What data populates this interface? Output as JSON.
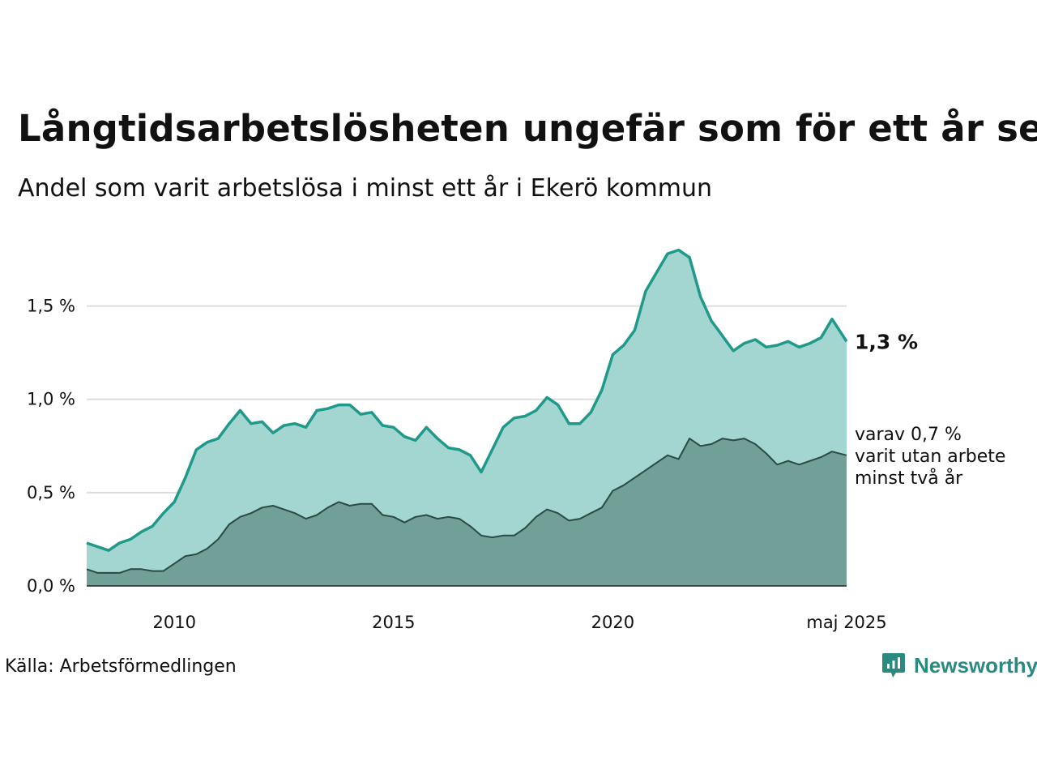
{
  "title": "Långtidsarbetslösheten ungefär som för ett år sen",
  "subtitle": "Andel som varit arbetslösa i minst ett år i Ekerö kommun",
  "source": "Källa: Arbetsförmedlingen",
  "brand": {
    "name": "Newsworthy",
    "icon": "newsworthy-logo-icon",
    "color": "#2a8a80"
  },
  "chart_data": {
    "type": "area",
    "x_start": "2008-01",
    "x_end": "2025-05",
    "xlim": [
      "2008-01",
      "2025-05"
    ],
    "ylim": [
      0,
      1.85
    ],
    "x_tick_labels": [
      {
        "x": "2010-01",
        "label": "2010"
      },
      {
        "x": "2015-01",
        "label": "2015"
      },
      {
        "x": "2020-01",
        "label": "2020"
      },
      {
        "x": "2025-05",
        "label": "maj 2025"
      }
    ],
    "y_ticks": [
      0,
      0.5,
      1.0,
      1.5
    ],
    "y_tick_labels": [
      "0,0 %",
      "0,5 %",
      "1,0 %",
      "1,5 %"
    ],
    "grid": true,
    "series": [
      {
        "id": "total",
        "color": "#1f9a8a",
        "fill": "#a3d6d0",
        "points": [
          [
            "2008-01",
            0.23
          ],
          [
            "2008-04",
            0.21
          ],
          [
            "2008-07",
            0.19
          ],
          [
            "2008-10",
            0.23
          ],
          [
            "2009-01",
            0.25
          ],
          [
            "2009-04",
            0.29
          ],
          [
            "2009-07",
            0.32
          ],
          [
            "2009-10",
            0.39
          ],
          [
            "2010-01",
            0.45
          ],
          [
            "2010-04",
            0.58
          ],
          [
            "2010-07",
            0.73
          ],
          [
            "2010-10",
            0.77
          ],
          [
            "2011-01",
            0.79
          ],
          [
            "2011-04",
            0.87
          ],
          [
            "2011-07",
            0.94
          ],
          [
            "2011-10",
            0.87
          ],
          [
            "2012-01",
            0.88
          ],
          [
            "2012-04",
            0.82
          ],
          [
            "2012-07",
            0.86
          ],
          [
            "2012-10",
            0.87
          ],
          [
            "2013-01",
            0.85
          ],
          [
            "2013-04",
            0.94
          ],
          [
            "2013-07",
            0.95
          ],
          [
            "2013-10",
            0.97
          ],
          [
            "2014-01",
            0.97
          ],
          [
            "2014-04",
            0.92
          ],
          [
            "2014-07",
            0.93
          ],
          [
            "2014-10",
            0.86
          ],
          [
            "2015-01",
            0.85
          ],
          [
            "2015-04",
            0.8
          ],
          [
            "2015-07",
            0.78
          ],
          [
            "2015-10",
            0.85
          ],
          [
            "2016-01",
            0.79
          ],
          [
            "2016-04",
            0.74
          ],
          [
            "2016-07",
            0.73
          ],
          [
            "2016-10",
            0.7
          ],
          [
            "2017-01",
            0.61
          ],
          [
            "2017-04",
            0.73
          ],
          [
            "2017-07",
            0.85
          ],
          [
            "2017-10",
            0.9
          ],
          [
            "2018-01",
            0.91
          ],
          [
            "2018-04",
            0.94
          ],
          [
            "2018-07",
            1.01
          ],
          [
            "2018-10",
            0.97
          ],
          [
            "2019-01",
            0.87
          ],
          [
            "2019-04",
            0.87
          ],
          [
            "2019-07",
            0.93
          ],
          [
            "2019-10",
            1.05
          ],
          [
            "2020-01",
            1.24
          ],
          [
            "2020-04",
            1.29
          ],
          [
            "2020-07",
            1.37
          ],
          [
            "2020-10",
            1.58
          ],
          [
            "2021-01",
            1.68
          ],
          [
            "2021-04",
            1.78
          ],
          [
            "2021-07",
            1.8
          ],
          [
            "2021-10",
            1.76
          ],
          [
            "2022-01",
            1.55
          ],
          [
            "2022-04",
            1.42
          ],
          [
            "2022-07",
            1.34
          ],
          [
            "2022-10",
            1.26
          ],
          [
            "2023-01",
            1.3
          ],
          [
            "2023-04",
            1.32
          ],
          [
            "2023-07",
            1.28
          ],
          [
            "2023-10",
            1.29
          ],
          [
            "2024-01",
            1.31
          ],
          [
            "2024-04",
            1.28
          ],
          [
            "2024-07",
            1.3
          ],
          [
            "2024-10",
            1.33
          ],
          [
            "2025-01",
            1.43
          ],
          [
            "2025-05",
            1.31
          ]
        ]
      },
      {
        "id": "two_years",
        "color": "#2b4a44",
        "fill": "#70a098",
        "points": [
          [
            "2008-01",
            0.09
          ],
          [
            "2008-04",
            0.07
          ],
          [
            "2008-07",
            0.07
          ],
          [
            "2008-10",
            0.07
          ],
          [
            "2009-01",
            0.09
          ],
          [
            "2009-04",
            0.09
          ],
          [
            "2009-07",
            0.08
          ],
          [
            "2009-10",
            0.08
          ],
          [
            "2010-01",
            0.12
          ],
          [
            "2010-04",
            0.16
          ],
          [
            "2010-07",
            0.17
          ],
          [
            "2010-10",
            0.2
          ],
          [
            "2011-01",
            0.25
          ],
          [
            "2011-04",
            0.33
          ],
          [
            "2011-07",
            0.37
          ],
          [
            "2011-10",
            0.39
          ],
          [
            "2012-01",
            0.42
          ],
          [
            "2012-04",
            0.43
          ],
          [
            "2012-07",
            0.41
          ],
          [
            "2012-10",
            0.39
          ],
          [
            "2013-01",
            0.36
          ],
          [
            "2013-04",
            0.38
          ],
          [
            "2013-07",
            0.42
          ],
          [
            "2013-10",
            0.45
          ],
          [
            "2014-01",
            0.43
          ],
          [
            "2014-04",
            0.44
          ],
          [
            "2014-07",
            0.44
          ],
          [
            "2014-10",
            0.38
          ],
          [
            "2015-01",
            0.37
          ],
          [
            "2015-04",
            0.34
          ],
          [
            "2015-07",
            0.37
          ],
          [
            "2015-10",
            0.38
          ],
          [
            "2016-01",
            0.36
          ],
          [
            "2016-04",
            0.37
          ],
          [
            "2016-07",
            0.36
          ],
          [
            "2016-10",
            0.32
          ],
          [
            "2017-01",
            0.27
          ],
          [
            "2017-04",
            0.26
          ],
          [
            "2017-07",
            0.27
          ],
          [
            "2017-10",
            0.27
          ],
          [
            "2018-01",
            0.31
          ],
          [
            "2018-04",
            0.37
          ],
          [
            "2018-07",
            0.41
          ],
          [
            "2018-10",
            0.39
          ],
          [
            "2019-01",
            0.35
          ],
          [
            "2019-04",
            0.36
          ],
          [
            "2019-07",
            0.39
          ],
          [
            "2019-10",
            0.42
          ],
          [
            "2020-01",
            0.51
          ],
          [
            "2020-04",
            0.54
          ],
          [
            "2020-07",
            0.58
          ],
          [
            "2020-10",
            0.62
          ],
          [
            "2021-01",
            0.66
          ],
          [
            "2021-04",
            0.7
          ],
          [
            "2021-07",
            0.68
          ],
          [
            "2021-10",
            0.79
          ],
          [
            "2022-01",
            0.75
          ],
          [
            "2022-04",
            0.76
          ],
          [
            "2022-07",
            0.79
          ],
          [
            "2022-10",
            0.78
          ],
          [
            "2023-01",
            0.79
          ],
          [
            "2023-04",
            0.76
          ],
          [
            "2023-07",
            0.71
          ],
          [
            "2023-10",
            0.65
          ],
          [
            "2024-01",
            0.67
          ],
          [
            "2024-04",
            0.65
          ],
          [
            "2024-07",
            0.67
          ],
          [
            "2024-10",
            0.69
          ],
          [
            "2025-01",
            0.72
          ],
          [
            "2025-05",
            0.7
          ]
        ]
      }
    ],
    "end_labels": {
      "total": "1,3 %",
      "two_years_lines": [
        "varav 0,7 %",
        "varit utan arbete",
        "minst två år"
      ]
    }
  }
}
